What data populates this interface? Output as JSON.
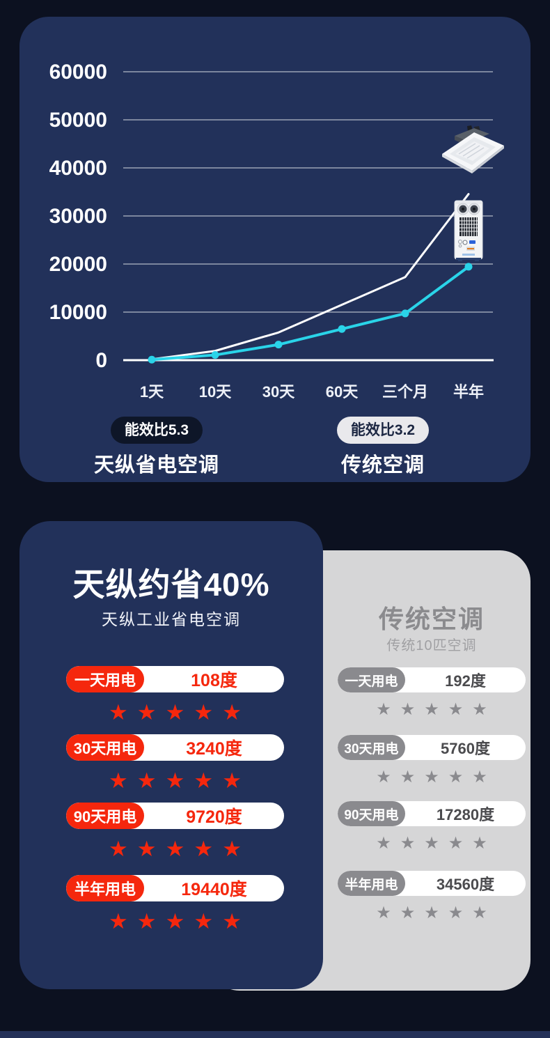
{
  "colors": {
    "page_bg": "#0c1120",
    "panel_bg": "#22315a",
    "cyan_line": "#2ad4e9",
    "white_line": "#ffffff",
    "red_accent": "#f5270d",
    "gray_accent": "#8a8a8e",
    "gray_card_bg": "#d6d6d7",
    "bottom_strip": "#243158"
  },
  "chart_data": {
    "type": "line",
    "title": "",
    "xlabel": "",
    "ylabel": "",
    "categories": [
      "1天",
      "10天",
      "30天",
      "60天",
      "三个月",
      "半年"
    ],
    "series": [
      {
        "name": "天纵省电空调",
        "color": "#2ad4e9",
        "markers": true,
        "values": [
          108,
          1080,
          3240,
          6480,
          9720,
          19440
        ]
      },
      {
        "name": "传统空调",
        "color": "#ffffff",
        "markers": false,
        "values": [
          192,
          1920,
          5760,
          11520,
          17280,
          34560
        ]
      }
    ],
    "ylim": [
      0,
      60000
    ],
    "ytick_step": 10000,
    "yticks": [
      "0",
      "10000",
      "20000",
      "30000",
      "40000",
      "50000",
      "60000"
    ],
    "grid": true,
    "legend_position": "bottom",
    "legend": [
      {
        "badge": "能效比5.3",
        "label": "天纵省电空调",
        "badge_bg": "#0e1628",
        "badge_color": "#ffffff"
      },
      {
        "badge": "能效比3.2",
        "label": "传统空调",
        "badge_bg": "#e9e9ec",
        "badge_color": "#1c2742"
      }
    ],
    "images": [
      {
        "name": "ceiling-cassette-ac",
        "points_to_series": "传统空调"
      },
      {
        "name": "standing-cabinet-ac",
        "points_to_series": "天纵省电空调"
      }
    ]
  },
  "comparison": {
    "left": {
      "title": "天纵约省40%",
      "subtitle": "天纵工业省电空调",
      "rows": [
        {
          "label": "一天用电",
          "value": "108度"
        },
        {
          "label": "30天用电",
          "value": "3240度"
        },
        {
          "label": "90天用电",
          "value": "9720度"
        },
        {
          "label": "半年用电",
          "value": "19440度"
        }
      ],
      "stars_per_row": 5,
      "accent": "#f5270d",
      "label_bg": "#f5270d",
      "value_color": "#f5270d",
      "star_color": "#f5270d",
      "title_color": "#ffffff",
      "card_bg": "#22315a"
    },
    "right": {
      "title": "传统空调",
      "subtitle": "传统10匹空调",
      "rows": [
        {
          "label": "一天用电",
          "value": "192度"
        },
        {
          "label": "30天用电",
          "value": "5760度"
        },
        {
          "label": "90天用电",
          "value": "17280度"
        },
        {
          "label": "半年用电",
          "value": "34560度"
        }
      ],
      "stars_per_row": 5,
      "accent": "#8a8a8e",
      "label_bg": "#8a8a8e",
      "value_color": "#4b4b4e",
      "star_color": "#8a8a8e",
      "title_color": "#8b8b8e",
      "card_bg": "#d6d6d7"
    }
  },
  "star_glyph": "★"
}
